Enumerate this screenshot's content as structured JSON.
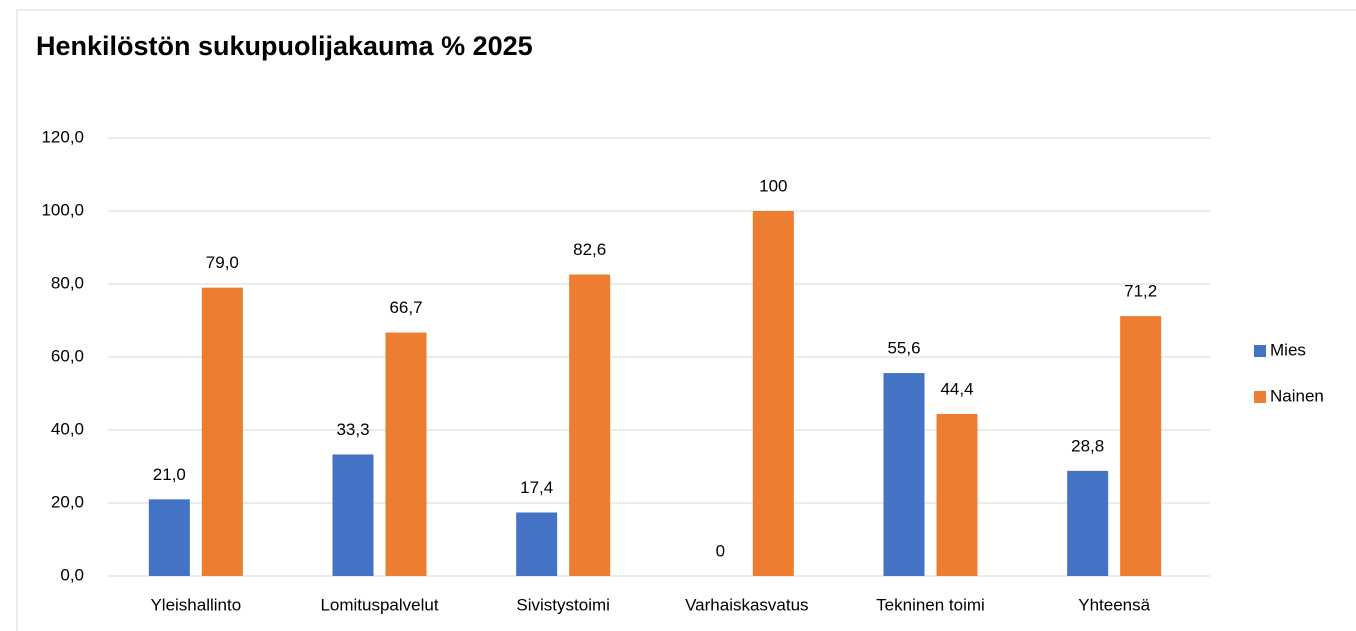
{
  "chart_data": {
    "type": "bar",
    "title": "Henkilöstön sukupuolijakauma % 2025",
    "categories": [
      "Yleishallinto",
      "Lomituspalvelut",
      "Sivistystoimi",
      "Varhaiskasvatus",
      "Tekninen toimi",
      "Yhteensä"
    ],
    "series": [
      {
        "name": "Mies",
        "color": "#4472c4",
        "values": [
          21.0,
          33.3,
          17.4,
          0,
          55.6,
          28.8
        ],
        "value_labels": [
          "21,0",
          "33,3",
          "17,4",
          "0",
          "55,6",
          "28,8"
        ]
      },
      {
        "name": "Nainen",
        "color": "#ed7d31",
        "values": [
          79.0,
          66.7,
          82.6,
          100,
          44.4,
          71.2
        ],
        "value_labels": [
          "79,0",
          "66,7",
          "82,6",
          "100",
          "44,4",
          "71,2"
        ]
      }
    ],
    "ylim": [
      0,
      120
    ],
    "yticks": [
      {
        "value": 0,
        "label": "0,0"
      },
      {
        "value": 20,
        "label": "20,0"
      },
      {
        "value": 40,
        "label": "40,0"
      },
      {
        "value": 60,
        "label": "60,0"
      },
      {
        "value": 80,
        "label": "80,0"
      },
      {
        "value": 100,
        "label": "100,0"
      },
      {
        "value": 120,
        "label": "120,0"
      }
    ],
    "grid": true,
    "legend": "right"
  }
}
